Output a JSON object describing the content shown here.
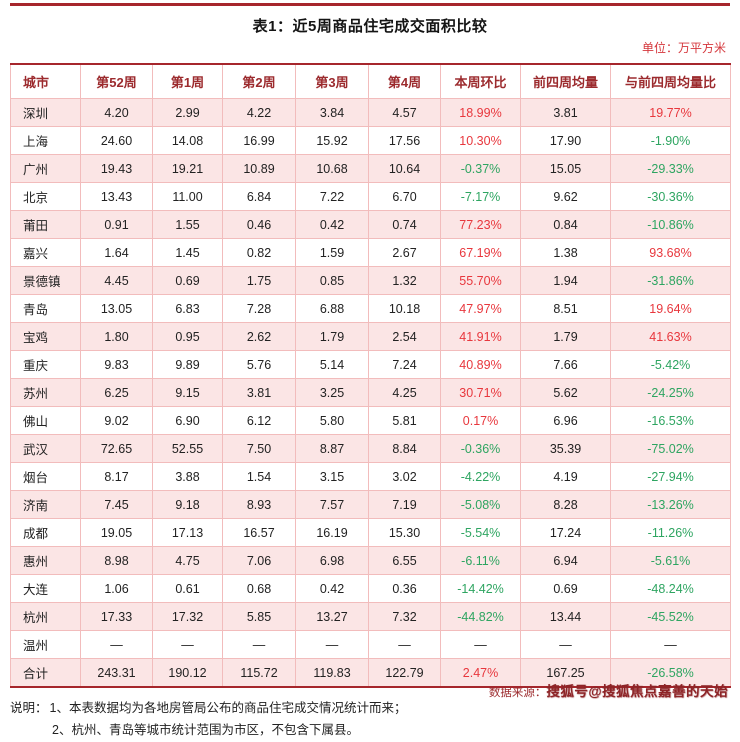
{
  "title": "表1：近5周商品住宅成交面积比较",
  "unit_label": "单位：万平方米",
  "colors": {
    "accent": "#a6262c",
    "positive": "#e8373d",
    "negative": "#2ea561"
  },
  "table": {
    "headers": [
      "城市",
      "第52周",
      "第1周",
      "第2周",
      "第3周",
      "第4周",
      "本周环比",
      "前四周均量",
      "与前四周均量比"
    ],
    "percent_columns": [
      6,
      8
    ],
    "rows": [
      [
        "深圳",
        "4.20",
        "2.99",
        "4.22",
        "3.84",
        "4.57",
        "18.99%",
        "3.81",
        "19.77%"
      ],
      [
        "上海",
        "24.60",
        "14.08",
        "16.99",
        "15.92",
        "17.56",
        "10.30%",
        "17.90",
        "-1.90%"
      ],
      [
        "广州",
        "19.43",
        "19.21",
        "10.89",
        "10.68",
        "10.64",
        "-0.37%",
        "15.05",
        "-29.33%"
      ],
      [
        "北京",
        "13.43",
        "11.00",
        "6.84",
        "7.22",
        "6.70",
        "-7.17%",
        "9.62",
        "-30.36%"
      ],
      [
        "莆田",
        "0.91",
        "1.55",
        "0.46",
        "0.42",
        "0.74",
        "77.23%",
        "0.84",
        "-10.86%"
      ],
      [
        "嘉兴",
        "1.64",
        "1.45",
        "0.82",
        "1.59",
        "2.67",
        "67.19%",
        "1.38",
        "93.68%"
      ],
      [
        "景德镇",
        "4.45",
        "0.69",
        "1.75",
        "0.85",
        "1.32",
        "55.70%",
        "1.94",
        "-31.86%"
      ],
      [
        "青岛",
        "13.05",
        "6.83",
        "7.28",
        "6.88",
        "10.18",
        "47.97%",
        "8.51",
        "19.64%"
      ],
      [
        "宝鸡",
        "1.80",
        "0.95",
        "2.62",
        "1.79",
        "2.54",
        "41.91%",
        "1.79",
        "41.63%"
      ],
      [
        "重庆",
        "9.83",
        "9.89",
        "5.76",
        "5.14",
        "7.24",
        "40.89%",
        "7.66",
        "-5.42%"
      ],
      [
        "苏州",
        "6.25",
        "9.15",
        "3.81",
        "3.25",
        "4.25",
        "30.71%",
        "5.62",
        "-24.25%"
      ],
      [
        "佛山",
        "9.02",
        "6.90",
        "6.12",
        "5.80",
        "5.81",
        "0.17%",
        "6.96",
        "-16.53%"
      ],
      [
        "武汉",
        "72.65",
        "52.55",
        "7.50",
        "8.87",
        "8.84",
        "-0.36%",
        "35.39",
        "-75.02%"
      ],
      [
        "烟台",
        "8.17",
        "3.88",
        "1.54",
        "3.15",
        "3.02",
        "-4.22%",
        "4.19",
        "-27.94%"
      ],
      [
        "济南",
        "7.45",
        "9.18",
        "8.93",
        "7.57",
        "7.19",
        "-5.08%",
        "8.28",
        "-13.26%"
      ],
      [
        "成都",
        "19.05",
        "17.13",
        "16.57",
        "16.19",
        "15.30",
        "-5.54%",
        "17.24",
        "-11.26%"
      ],
      [
        "惠州",
        "8.98",
        "4.75",
        "7.06",
        "6.98",
        "6.55",
        "-6.11%",
        "6.94",
        "-5.61%"
      ],
      [
        "大连",
        "1.06",
        "0.61",
        "0.68",
        "0.42",
        "0.36",
        "-14.42%",
        "0.69",
        "-48.24%"
      ],
      [
        "杭州",
        "17.33",
        "17.32",
        "5.85",
        "13.27",
        "7.32",
        "-44.82%",
        "13.44",
        "-45.52%"
      ],
      [
        "温州",
        "—",
        "—",
        "—",
        "—",
        "—",
        "—",
        "—",
        "—"
      ],
      [
        "合计",
        "243.31",
        "190.12",
        "115.72",
        "119.83",
        "122.79",
        "2.47%",
        "167.25",
        "-26.58%"
      ]
    ]
  },
  "notes": {
    "label": "说明：",
    "line1": "1、本表数据均为各地房管局公布的商品住宅成交情况统计而来；",
    "line2": "2、杭州、青岛等城市统计范围为市区，不包含下属县。"
  },
  "source": {
    "label": "数据来源：",
    "name": "搜狐号@搜狐焦点嘉善的天始"
  }
}
